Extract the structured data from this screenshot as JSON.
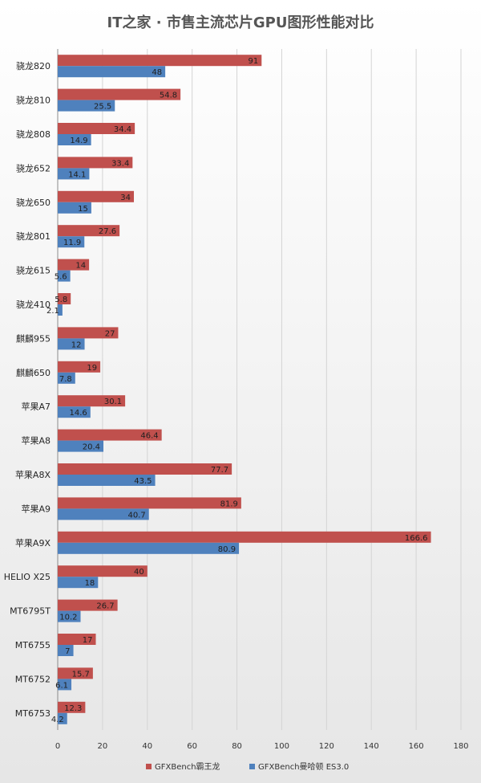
{
  "chart_data": {
    "type": "bar",
    "orientation": "horizontal",
    "title": "IT之家 · 市售主流芯片GPU图形性能对比",
    "categories": [
      "骁龙820",
      "骁龙810",
      "骁龙808",
      "骁龙652",
      "骁龙650",
      "骁龙801",
      "骁龙615",
      "骁龙410",
      "麒麟955",
      "麒麟650",
      "苹果A7",
      "苹果A8",
      "苹果A8X",
      "苹果A9",
      "苹果A9X",
      "HELIO X25",
      "MT6795T",
      "MT6755",
      "MT6752",
      "MT6753"
    ],
    "series": [
      {
        "name": "GFXBench霸王龙",
        "color": "#c0504d",
        "values": [
          91,
          54.8,
          34.4,
          33.4,
          34,
          27.6,
          14,
          5.8,
          27,
          19,
          30.1,
          46.4,
          77.7,
          81.9,
          166.6,
          40,
          26.7,
          17,
          15.7,
          12.3
        ]
      },
      {
        "name": "GFXBench曼哈顿 ES3.0",
        "color": "#4f81bd",
        "values": [
          48,
          25.5,
          14.9,
          14.1,
          15,
          11.9,
          5.6,
          2.1,
          12,
          7.8,
          14.6,
          20.4,
          43.5,
          40.7,
          80.9,
          18,
          10.2,
          7,
          6.1,
          4.2
        ]
      }
    ],
    "xlim": [
      0,
      180
    ],
    "xticks": [
      0,
      20,
      40,
      60,
      80,
      100,
      120,
      140,
      160,
      180
    ],
    "grid": true,
    "legend_position": "bottom"
  }
}
